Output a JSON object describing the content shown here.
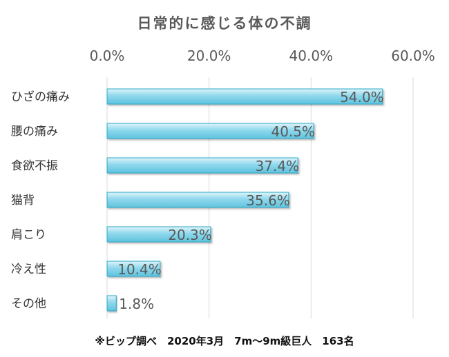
{
  "chart_data": {
    "type": "bar",
    "orientation": "horizontal",
    "title": "日常的に感じる体の不調",
    "footnote": "※ビップ調べ　2020年3月　7m〜9m級巨人　163名",
    "categories": [
      "ひざの痛み",
      "腰の痛み",
      "食欲不振",
      "猫背",
      "肩こり",
      "冷え性",
      "その他"
    ],
    "values": [
      54.0,
      40.5,
      37.4,
      35.6,
      20.3,
      10.4,
      1.8
    ],
    "value_labels": [
      "54.0%",
      "40.5%",
      "37.4%",
      "35.6%",
      "20.3%",
      "10.4%",
      "1.8%"
    ],
    "xlim": [
      0,
      60
    ],
    "x_ticks": [
      0,
      20,
      40,
      60
    ],
    "x_tick_labels": [
      "0.0%",
      "20.0%",
      "40.0%",
      "60.0%"
    ],
    "x_axis_position": "top",
    "grid": true,
    "legend": "none",
    "colors": {
      "bar_fill_light": "#dff4fa",
      "bar_fill_mid": "#8fd8ec",
      "bar_fill_dark": "#5fc3de",
      "bar_stroke": "#2aa8c8",
      "grid": "#d9d9d9",
      "tick_text": "#595959",
      "label_text": "#333333"
    }
  }
}
